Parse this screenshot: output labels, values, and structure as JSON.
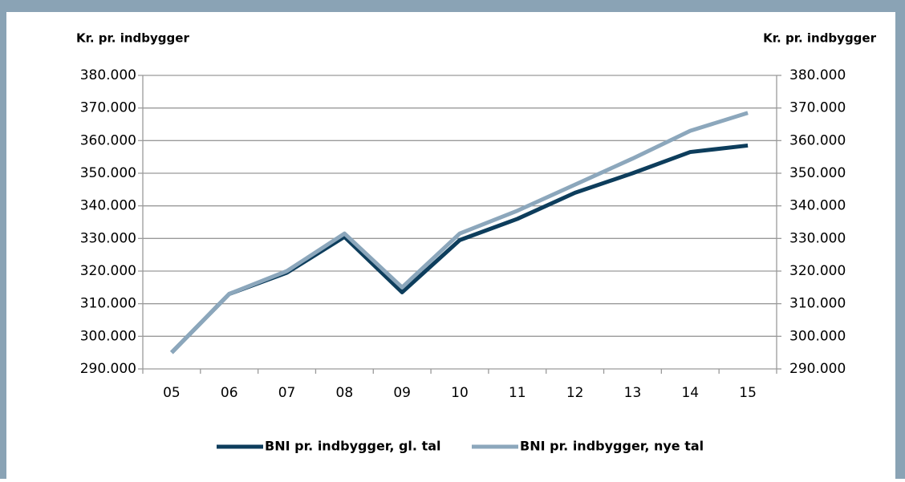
{
  "chart_data": {
    "type": "line",
    "ylabel": "Kr. pr. indbygger",
    "y2label": "Kr. pr. indbygger",
    "categories": [
      "05",
      "06",
      "07",
      "08",
      "09",
      "10",
      "11",
      "12",
      "13",
      "14",
      "15"
    ],
    "series": [
      {
        "name": "BNI pr. indbygger, gl. tal",
        "color": "#0d3d5c",
        "values": [
          295000,
          313000,
          319500,
          330500,
          313500,
          329500,
          336000,
          344000,
          350000,
          356500,
          358500
        ]
      },
      {
        "name": "BNI pr. indbygger, nye tal",
        "color": "#8ca7bc",
        "values": [
          295000,
          313000,
          320000,
          331500,
          315000,
          331500,
          338500,
          346500,
          354500,
          363000,
          368500
        ]
      }
    ],
    "ylim": [
      290000,
      380000
    ],
    "yticks": [
      {
        "value": 290000,
        "label": "290.000"
      },
      {
        "value": 300000,
        "label": "300.000"
      },
      {
        "value": 310000,
        "label": "310.000"
      },
      {
        "value": 320000,
        "label": "320.000"
      },
      {
        "value": 330000,
        "label": "330.000"
      },
      {
        "value": 340000,
        "label": "340.000"
      },
      {
        "value": 350000,
        "label": "350.000"
      },
      {
        "value": 360000,
        "label": "360.000"
      },
      {
        "value": 370000,
        "label": "370.000"
      },
      {
        "value": 380000,
        "label": "380.000"
      }
    ],
    "y2lim": [
      290000,
      380000
    ],
    "y2ticks": [
      {
        "value": 290000,
        "label": "290.000"
      },
      {
        "value": 300000,
        "label": "300.000"
      },
      {
        "value": 310000,
        "label": "310.000"
      },
      {
        "value": 320000,
        "label": "320.000"
      },
      {
        "value": 330000,
        "label": "330.000"
      },
      {
        "value": 340000,
        "label": "340.000"
      },
      {
        "value": 350000,
        "label": "350.000"
      },
      {
        "value": 360000,
        "label": "360.000"
      },
      {
        "value": 370000,
        "label": "370.000"
      },
      {
        "value": 380000,
        "label": "380.000"
      }
    ],
    "grid": true,
    "legend": "bottom"
  }
}
